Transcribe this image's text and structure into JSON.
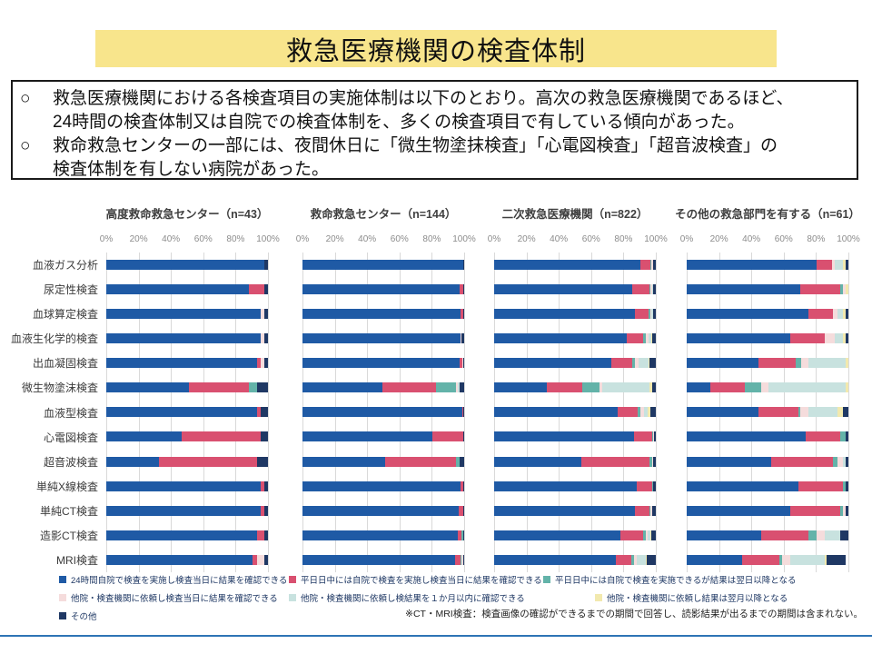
{
  "slide_title": "救急医療機関の検査体制",
  "notes": {
    "marker": "○",
    "bullet1_line1": "救急医療機関における各検査項目の実施体制は以下のとおり。高次の救急医療機関であるほど、",
    "bullet1_line2": "24時間の検査体制又は自院での検査体制を、多くの検査項目で有している傾向があった。",
    "bullet2_line1": "救命救急センターの一部には、夜間休日に「微生物塗抹検査」「心電図検査」「超音波検査」の",
    "bullet2_line2": "検査体制を有しない病院があった。"
  },
  "colors": {
    "blue": "#1F5AA5",
    "pink": "#D95070",
    "teal": "#63B3A9",
    "lightpink": "#F5DCDC",
    "lightteal": "#C8E2DF",
    "lightyellow": "#F2E9AE",
    "navy": "#1F3864",
    "band_yellow": "#F8E58C",
    "bottom_line": "#2E74B5"
  },
  "chart_data": {
    "type": "bar",
    "orientation": "horizontal-stacked",
    "ticks": [
      "0%",
      "20%",
      "40%",
      "60%",
      "80%",
      "100%"
    ],
    "xlim": [
      0,
      100
    ],
    "grid": true,
    "legend_position": "bottom",
    "categories": [
      "血液ガス分析",
      "尿定性検査",
      "血球算定検査",
      "血液生化学的検査",
      "出血凝固検査",
      "微生物塗沫検査",
      "血液型検査",
      "心電図検査",
      "超音波検査",
      "単純X線検査",
      "単純CT検査",
      "造影CT検査",
      "MRI検査"
    ],
    "series": [
      {
        "key": "blue",
        "name": "24時間自院で検査を実施し検査当日に結果を確認できる"
      },
      {
        "key": "pink",
        "name": "平日日中には自院で検査を実施し検査当日に結果を確認できる"
      },
      {
        "key": "teal",
        "name": "平日日中には自院で検査を実施できるが結果は翌日以降となる"
      },
      {
        "key": "lightpink",
        "name": "他院・検査機関に依頼し検査当日に結果を確認できる"
      },
      {
        "key": "lightteal",
        "name": "他院・検査機関に依頼し検結果を１か月以内に確認できる"
      },
      {
        "key": "lightyellow",
        "name": "他院・検査機関に依頼し結果は翌月以降となる"
      },
      {
        "key": "navy",
        "name": "その他"
      }
    ],
    "charts": [
      {
        "title": "高度救命救急センター（n=43）",
        "rows": [
          [
            97.7,
            0,
            0,
            0,
            0,
            0,
            2.3
          ],
          [
            88.4,
            9.3,
            0,
            0,
            0,
            0,
            2.3
          ],
          [
            95.3,
            0,
            0,
            2.3,
            0,
            0,
            2.3
          ],
          [
            95.3,
            0,
            0,
            2.3,
            0,
            0,
            2.3
          ],
          [
            93.0,
            2.3,
            0,
            2.4,
            0,
            0,
            2.3
          ],
          [
            51.2,
            37.2,
            4.7,
            0,
            0,
            0,
            6.9
          ],
          [
            93.0,
            2.3,
            0,
            0,
            0,
            0,
            4.7
          ],
          [
            46.5,
            48.8,
            0,
            0,
            0,
            0,
            4.7
          ],
          [
            32.6,
            60.4,
            0,
            0,
            0,
            0,
            7.0
          ],
          [
            95.3,
            2.4,
            0,
            0,
            0,
            0,
            2.3
          ],
          [
            95.3,
            2.4,
            0,
            0,
            0,
            0,
            2.3
          ],
          [
            93.0,
            4.7,
            0,
            0,
            0,
            0,
            2.3
          ],
          [
            90.7,
            2.3,
            0,
            4.7,
            0,
            0,
            2.3
          ]
        ]
      },
      {
        "title": "救命救急センター（n=144）",
        "rows": [
          [
            99.3,
            0,
            0,
            0,
            0,
            0,
            0.7
          ],
          [
            97.2,
            2.1,
            0,
            0,
            0,
            0,
            0.7
          ],
          [
            97.9,
            1.4,
            0,
            0,
            0,
            0,
            0.7
          ],
          [
            97.9,
            0,
            0,
            0.7,
            0,
            0,
            1.4
          ],
          [
            97.2,
            1.4,
            0,
            0.7,
            0,
            0,
            0.7
          ],
          [
            49.3,
            33.3,
            12.5,
            0.7,
            1.4,
            0,
            2.8
          ],
          [
            98.6,
            0.7,
            0,
            0,
            0,
            0,
            0.7
          ],
          [
            80.5,
            18.8,
            0,
            0,
            0,
            0,
            0.7
          ],
          [
            51.4,
            43.8,
            2.1,
            0,
            0,
            0,
            2.7
          ],
          [
            97.9,
            1.4,
            0,
            0,
            0,
            0,
            0.7
          ],
          [
            96.5,
            2.8,
            0,
            0,
            0,
            0,
            0.7
          ],
          [
            95.8,
            2.8,
            0.7,
            0,
            0,
            0,
            0.7
          ],
          [
            94.4,
            3.5,
            0.7,
            0.7,
            0,
            0,
            0.7
          ]
        ]
      },
      {
        "title": "二次救急医療機関（n=822）",
        "rows": [
          [
            90.5,
            6.1,
            0.5,
            1.0,
            0.5,
            0,
            1.4
          ],
          [
            85.5,
            10.3,
            0.9,
            0.9,
            0.5,
            0.2,
            1.7
          ],
          [
            86.9,
            8.4,
            1.2,
            0.9,
            0.7,
            0,
            1.9
          ],
          [
            81.9,
            10.1,
            2.1,
            1.5,
            1.5,
            0.5,
            2.4
          ],
          [
            72.7,
            12.9,
            1.7,
            2.1,
            6.0,
            0.9,
            3.7
          ],
          [
            32.4,
            22.1,
            10.7,
            1.9,
            29.1,
            1.5,
            2.3
          ],
          [
            76.5,
            12.2,
            1.5,
            2.3,
            2.7,
            1.3,
            3.5
          ],
          [
            86.3,
            11.5,
            0.6,
            0.4,
            0,
            0,
            1.2
          ],
          [
            53.9,
            42.3,
            1.5,
            0.4,
            0,
            0,
            1.9
          ],
          [
            88.3,
            9.4,
            0.5,
            0.4,
            0,
            0,
            1.4
          ],
          [
            86.9,
            9.0,
            1.0,
            0.9,
            0,
            0,
            2.2
          ],
          [
            78.0,
            14.1,
            1.9,
            1.0,
            1.6,
            0.5,
            2.9
          ],
          [
            75.2,
            9.7,
            1.9,
            1.3,
            5.5,
            1.0,
            5.4
          ]
        ]
      },
      {
        "title": "その他の救急部門を有する（n=61）",
        "rows": [
          [
            80.3,
            9.8,
            0,
            1.6,
            4.9,
            1.6,
            1.6
          ],
          [
            70.5,
            24.6,
            1.6,
            1.6,
            0,
            1.6,
            0
          ],
          [
            75.4,
            14.8,
            0,
            3.3,
            3.3,
            1.6,
            1.6
          ],
          [
            63.9,
            21.3,
            0,
            6.6,
            4.9,
            1.6,
            1.6
          ],
          [
            44.3,
            23.0,
            3.3,
            4.9,
            23.0,
            1.6,
            0
          ],
          [
            14.8,
            21.3,
            9.8,
            4.9,
            47.5,
            1.6,
            0
          ],
          [
            44.3,
            24.6,
            1.6,
            4.9,
            18.0,
            3.3,
            3.3
          ],
          [
            73.8,
            21.3,
            3.3,
            0,
            0,
            0,
            1.6
          ],
          [
            52.5,
            37.7,
            3.3,
            3.3,
            1.6,
            0,
            1.6
          ],
          [
            68.9,
            27.9,
            1.6,
            0,
            0,
            0,
            1.6
          ],
          [
            63.9,
            31.1,
            1.6,
            1.6,
            0,
            0,
            1.6
          ],
          [
            45.9,
            29.5,
            5.0,
            4.9,
            9.8,
            0,
            4.9
          ],
          [
            34.4,
            23.0,
            1.6,
            4.9,
            21.3,
            1.6,
            11.5
          ]
        ]
      }
    ]
  },
  "footnote": "※CT・MRI検査：検査画像の確認ができるまでの期間で回答し、読影結果が出るまでの期間は含まれない。"
}
